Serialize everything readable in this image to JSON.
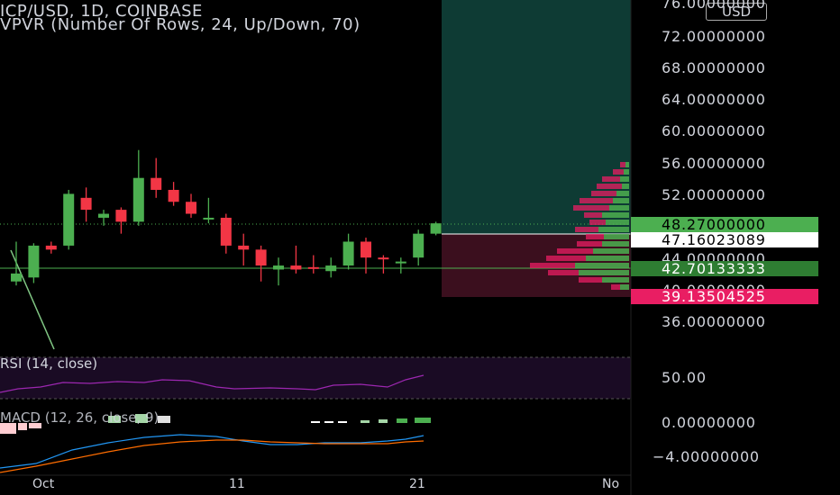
{
  "header": {
    "title": "ICP/USD, 1D, COINBASE",
    "indicator": "VPVR (Number Of Rows, 24, Up/Down, 70)"
  },
  "currency_button": "USD",
  "price_axis": {
    "labels": [
      "76.00000000",
      "72.00000000",
      "68.00000000",
      "64.00000000",
      "60.00000000",
      "56.00000000",
      "52.00000000",
      "44.00000000",
      "40.00000000",
      "36.00000000"
    ],
    "tags": [
      {
        "text": "48.27000000",
        "bg": "#4caf50",
        "fg": "#000000"
      },
      {
        "text": "47.16023089",
        "bg": "#ffffff",
        "fg": "#000000"
      },
      {
        "text": "42.70133333",
        "bg": "#2e7d32",
        "fg": "#ffffff"
      },
      {
        "text": "39.13504525",
        "bg": "#e91e63",
        "fg": "#ffffff"
      }
    ]
  },
  "rsi": {
    "label": "RSI (14, close)",
    "axis": "50.00"
  },
  "macd": {
    "label": "MACD (12, 26, close, 9)",
    "axis": [
      "0.00000000",
      "−4.00000000"
    ]
  },
  "time_axis": {
    "labels": [
      "Oct",
      "11",
      "21",
      "No"
    ]
  },
  "colors": {
    "up": "#4caf50",
    "down": "#f23645",
    "rsi": "#9c27b0",
    "macd": "#2196f3",
    "signal": "#ff6d00",
    "profit_zone": "#0e3b34",
    "loss_zone": "#3b0f1e"
  },
  "chart_data": {
    "type": "candlestick",
    "title": "ICP/USD, 1D, COINBASE",
    "ylim": [
      36,
      76
    ],
    "candles": [
      {
        "o": 41.0,
        "h": 46.0,
        "l": 40.5,
        "c": 42.0
      },
      {
        "o": 41.5,
        "h": 45.8,
        "l": 40.8,
        "c": 45.5
      },
      {
        "o": 45.5,
        "h": 46.0,
        "l": 44.5,
        "c": 45.0
      },
      {
        "o": 45.5,
        "h": 52.5,
        "l": 45.0,
        "c": 52.0
      },
      {
        "o": 51.5,
        "h": 52.8,
        "l": 48.5,
        "c": 50.0
      },
      {
        "o": 49.0,
        "h": 50.0,
        "l": 48.0,
        "c": 49.5
      },
      {
        "o": 50.0,
        "h": 50.3,
        "l": 47.0,
        "c": 48.5
      },
      {
        "o": 48.5,
        "h": 57.5,
        "l": 48.0,
        "c": 54.0
      },
      {
        "o": 54.0,
        "h": 56.5,
        "l": 51.5,
        "c": 52.5
      },
      {
        "o": 52.5,
        "h": 53.5,
        "l": 50.5,
        "c": 51.0
      },
      {
        "o": 51.0,
        "h": 52.0,
        "l": 49.0,
        "c": 49.5
      },
      {
        "o": 49.0,
        "h": 51.5,
        "l": 48.3,
        "c": 49.0
      },
      {
        "o": 49.0,
        "h": 49.5,
        "l": 44.5,
        "c": 45.5
      },
      {
        "o": 45.5,
        "h": 47.0,
        "l": 43.0,
        "c": 45.0
      },
      {
        "o": 45.0,
        "h": 45.5,
        "l": 41.0,
        "c": 43.0
      },
      {
        "o": 42.5,
        "h": 44.0,
        "l": 40.5,
        "c": 43.0
      },
      {
        "o": 43.0,
        "h": 45.5,
        "l": 42.0,
        "c": 42.5
      },
      {
        "o": 42.8,
        "h": 44.3,
        "l": 42.0,
        "c": 42.7
      },
      {
        "o": 42.3,
        "h": 44.0,
        "l": 41.5,
        "c": 43.0
      },
      {
        "o": 43.0,
        "h": 47.0,
        "l": 42.5,
        "c": 46.0
      },
      {
        "o": 46.0,
        "h": 46.5,
        "l": 42.0,
        "c": 44.0
      },
      {
        "o": 44.0,
        "h": 44.3,
        "l": 42.0,
        "c": 43.8
      },
      {
        "o": 43.5,
        "h": 44.0,
        "l": 42.0,
        "c": 43.5
      },
      {
        "o": 44.0,
        "h": 47.5,
        "l": 43.0,
        "c": 47.0
      },
      {
        "o": 47.0,
        "h": 48.5,
        "l": 46.8,
        "c": 48.3
      }
    ]
  }
}
